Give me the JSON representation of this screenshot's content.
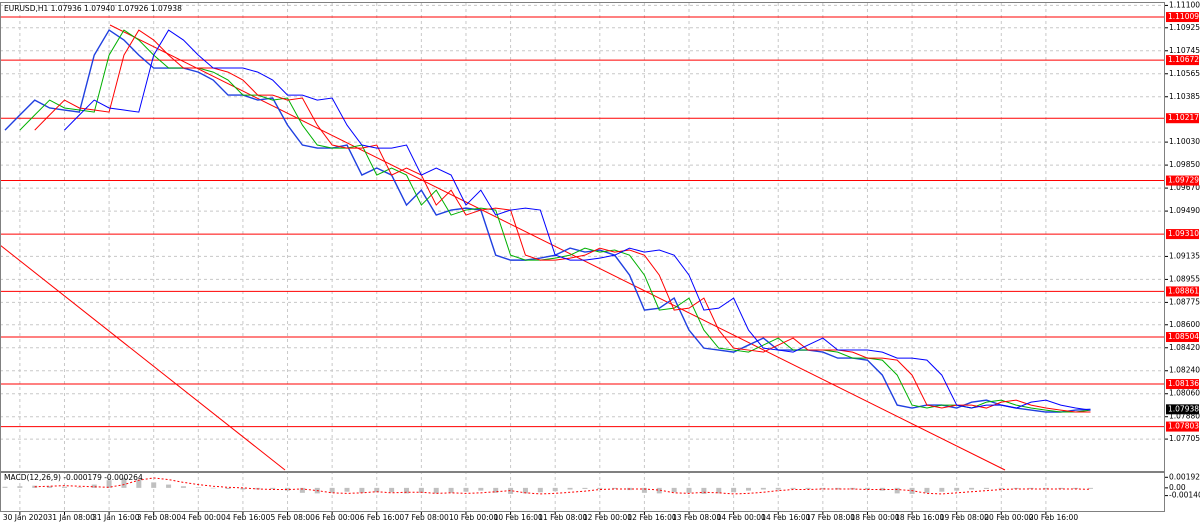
{
  "chart_data": [
    {
      "type": "line",
      "title": "EURUSD,H1 1.07936 1.07940 1.07926 1.07938",
      "x": [
        null,
        "30 Jan 2020",
        null,
        null,
        "31 Jan 08:00",
        null,
        null,
        "31 Jan 16:00",
        null,
        null,
        "3 Feb 08:00",
        null,
        null,
        "4 Feb 00:00",
        null,
        null,
        "4 Feb 16:00",
        null,
        null,
        "5 Feb 08:00",
        null,
        null,
        "6 Feb 00:00",
        null,
        null,
        "6 Feb 16:00",
        null,
        null,
        "7 Feb 08:00",
        null,
        null,
        "10 Feb 00:00",
        null,
        null,
        "10 Feb 16:00",
        null,
        null,
        "11 Feb 08:00",
        null,
        null,
        "12 Feb 00:00",
        null,
        null,
        "12 Feb 16:00",
        null,
        null,
        "13 Feb 08:00",
        null,
        null,
        "14 Feb 00:00",
        null,
        null,
        "14 Feb 16:00",
        null,
        null,
        "17 Feb 08:00",
        null,
        null,
        "18 Feb 00:00",
        null,
        null,
        "18 Feb 16:00",
        null,
        null,
        "19 Feb 08:00",
        null,
        null,
        "20 Feb 00:00",
        null,
        null,
        "20 Feb 16:00",
        null,
        null,
        null
      ],
      "series": [
        {
          "color": "#2040e0",
          "values": [
            1.10124,
            1.10242,
            1.10359,
            1.10297,
            1.10281,
            1.10265,
            1.10711,
            1.10907,
            1.10829,
            1.10711,
            1.1061,
            1.1061,
            1.1061,
            1.10578,
            1.10516,
            1.10398,
            1.10398,
            1.10359,
            1.10375,
            1.10163,
            1.10007,
            1.09983,
            1.09983,
            1.10007,
            1.09772,
            1.09827,
            1.09772,
            1.09537,
            1.09654,
            1.09459,
            1.09498,
            1.09513,
            1.09498,
            1.09145,
            1.09106,
            1.09106,
            1.09122,
            1.09145,
            1.092,
            1.09169,
            1.09185,
            1.09145,
            1.08989,
            1.08715,
            1.0873,
            1.08809,
            1.08558,
            1.08417,
            1.08402,
            1.08386,
            1.08441,
            1.08496,
            1.08402,
            1.08402,
            1.08402,
            1.08386,
            1.08339,
            1.08339,
            1.08323,
            1.08206,
            1.07971,
            1.07948,
            1.07971,
            1.07971,
            1.07948,
            1.07994,
            1.0801,
            1.07971,
            1.07948,
            1.07932,
            1.07917,
            1.07917,
            1.07932,
            1.07938
          ]
        },
        {
          "color": "#00b000",
          "values": [
            null,
            1.10124,
            1.10242,
            1.10359,
            1.10297,
            1.10281,
            1.10265,
            1.10711,
            1.10907,
            1.10829,
            1.10711,
            1.1061,
            1.1061,
            1.1061,
            1.10578,
            1.10516,
            1.10398,
            1.10398,
            1.10359,
            1.10375,
            1.10163,
            1.10007,
            1.09983,
            1.09983,
            1.10007,
            1.09772,
            1.09827,
            1.09772,
            1.09537,
            1.09654,
            1.09459,
            1.09498,
            1.09513,
            1.09498,
            1.09145,
            1.09106,
            1.09106,
            1.09122,
            1.09145,
            1.092,
            1.09169,
            1.09185,
            1.09145,
            1.08989,
            1.08715,
            1.0873,
            1.08809,
            1.08558,
            1.08417,
            1.08402,
            1.08386,
            1.08441,
            1.08496,
            1.08402,
            1.08402,
            1.08402,
            1.08386,
            1.08339,
            1.08339,
            1.08323,
            1.08206,
            1.07971,
            1.07948,
            1.07971,
            1.07971,
            1.07948,
            1.07994,
            1.0801,
            1.07971,
            1.07948,
            1.07932,
            1.07917,
            1.07917,
            1.07932
          ]
        },
        {
          "color": "#ff0000",
          "values": [
            null,
            null,
            1.10124,
            1.10242,
            1.10359,
            1.10297,
            1.10281,
            1.10265,
            1.10711,
            1.10907,
            1.10829,
            1.10711,
            1.1061,
            1.1061,
            1.1061,
            1.10578,
            1.10516,
            1.10398,
            1.10398,
            1.10359,
            1.10375,
            1.10163,
            1.10007,
            1.09983,
            1.09983,
            1.10007,
            1.09772,
            1.09827,
            1.09772,
            1.09537,
            1.09654,
            1.09459,
            1.09498,
            1.09513,
            1.09498,
            1.09145,
            1.09106,
            1.09106,
            1.09122,
            1.09145,
            1.092,
            1.09169,
            1.09185,
            1.09145,
            1.08989,
            1.08715,
            1.0873,
            1.08809,
            1.08558,
            1.08417,
            1.08402,
            1.08386,
            1.08441,
            1.08496,
            1.08402,
            1.08402,
            1.08402,
            1.08386,
            1.08339,
            1.08339,
            1.08323,
            1.08206,
            1.07971,
            1.07948,
            1.07971,
            1.07971,
            1.07948,
            1.07994,
            1.0801,
            1.07971,
            1.07948,
            1.07932,
            1.07917,
            1.07917
          ]
        },
        {
          "color": "#0000ff",
          "values": [
            null,
            null,
            null,
            null,
            1.10124,
            1.10242,
            1.10359,
            1.10297,
            1.10281,
            1.10265,
            1.10711,
            1.10907,
            1.10829,
            1.10711,
            1.1061,
            1.1061,
            1.1061,
            1.10578,
            1.10516,
            1.10398,
            1.10398,
            1.10359,
            1.10375,
            1.10163,
            1.10007,
            1.09983,
            1.09983,
            1.10007,
            1.09772,
            1.09827,
            1.09772,
            1.09537,
            1.09654,
            1.09459,
            1.09498,
            1.09513,
            1.09498,
            1.09145,
            1.09106,
            1.09106,
            1.09122,
            1.09145,
            1.092,
            1.09169,
            1.09185,
            1.09145,
            1.08989,
            1.08715,
            1.0873,
            1.08809,
            1.08558,
            1.08417,
            1.08402,
            1.08386,
            1.08441,
            1.08496,
            1.08402,
            1.08402,
            1.08402,
            1.08386,
            1.08339,
            1.08339,
            1.08323,
            1.08206,
            1.07971,
            1.07948,
            1.07971,
            1.07971,
            1.07948,
            1.07994,
            1.0801,
            1.07971,
            1.07948,
            1.07932
          ]
        }
      ],
      "ylim": [
        1.07463,
        1.11119
      ],
      "yticks": [
        {
          "value": 1.111,
          "label": "1.11100"
        },
        1.10925,
        1.10745,
        1.10565,
        1.10385,
        {
          "value": 1.1003,
          "label": "1.10030"
        },
        {
          "value": 1.0985,
          "label": "1.09850"
        },
        {
          "value": 1.0967,
          "label": "1.09670"
        },
        {
          "value": 1.0949,
          "label": "1.09490"
        },
        1.09135,
        1.08955,
        1.08775,
        {
          "value": 1.086,
          "label": "1.08600"
        },
        {
          "value": 1.0842,
          "label": "1.08420"
        },
        {
          "value": 1.0824,
          "label": "1.08240"
        },
        {
          "value": 1.0806,
          "label": "1.08060"
        },
        {
          "value": 1.0788,
          "label": "1.07880"
        },
        1.07705
      ],
      "levels": [
        1.11009,
        1.10672,
        1.10217,
        1.09729,
        {
          "value": 1.0931,
          "label": "1.09310"
        },
        1.08861,
        1.08504,
        1.08136,
        1.07803
      ],
      "last_price": 1.07938,
      "grid": true
    },
    {
      "type": "bar",
      "title": "MACD(12,26,9) -0.000179 -0.000264",
      "series": [
        {
          "type": "bar",
          "color": "#c0c0c0",
          "values": [
            0.0002,
            0.0003,
            0.0004,
            0.0003,
            0.0002,
            0.0001,
            0.0006,
            0.0014,
            0.0018,
            0.0015,
            0.001,
            0.0006,
            0.0003,
            0.0001,
            0,
            -0.0002,
            -0.0003,
            -0.0003,
            -0.0002,
            -0.0005,
            -0.0009,
            -0.001,
            -0.0009,
            -0.0007,
            -0.0009,
            -0.0008,
            -0.0008,
            -0.001,
            -0.0009,
            -0.001,
            -0.0009,
            -0.0007,
            -0.0005,
            -0.0009,
            -0.0011,
            -0.001,
            -0.0008,
            -0.0006,
            -0.0003,
            -0.0002,
            -0.0002,
            -0.0002,
            -0.0004,
            -0.0009,
            -0.001,
            -0.0008,
            -0.0009,
            -0.0011,
            -0.001,
            -0.0008,
            -0.0005,
            -0.0003,
            -0.0003,
            -0.0002,
            -0.0002,
            -0.0002,
            -0.0003,
            -0.0003,
            -0.0003,
            -0.0005,
            -0.001,
            -0.0011,
            -0.0009,
            -0.0007,
            -0.0005,
            -0.0003,
            -0.0002,
            -0.0002,
            -0.0002,
            -0.0002,
            -0.0002,
            -0.0002,
            -0.0002,
            -0.000179
          ]
        },
        {
          "type": "line",
          "color": "#ff0000",
          "values": [
            null,
            null,
            0.0002,
            0.0003,
            0.0004,
            0.0003,
            0.0002,
            0.0001,
            0.0006,
            0.0014,
            0.0018,
            0.0015,
            0.001,
            0.0006,
            0.0003,
            0.0001,
            0,
            -0.0002,
            -0.0003,
            -0.0003,
            -0.0002,
            -0.0005,
            -0.0009,
            -0.001,
            -0.0009,
            -0.0007,
            -0.0009,
            -0.0008,
            -0.0008,
            -0.001,
            -0.0009,
            -0.001,
            -0.0009,
            -0.0007,
            -0.0005,
            -0.0009,
            -0.0011,
            -0.001,
            -0.0008,
            -0.0006,
            -0.0003,
            -0.0002,
            -0.0002,
            -0.0002,
            -0.0004,
            -0.0009,
            -0.001,
            -0.0008,
            -0.0009,
            -0.0011,
            -0.001,
            -0.0008,
            -0.0005,
            -0.0003,
            -0.0003,
            -0.0002,
            -0.0002,
            -0.0002,
            -0.0003,
            -0.0003,
            -0.0003,
            -0.0005,
            -0.001,
            -0.0011,
            -0.0009,
            -0.0007,
            -0.0005,
            -0.0003,
            -0.0002,
            -0.0002,
            -0.0002,
            -0.0002,
            -0.0002,
            -0.000264
          ]
        }
      ],
      "ylim": [
        -0.0042,
        0.0027
      ],
      "yticks": [
        0.001921,
        {
          "value": 0,
          "label": "0.00"
        },
        -0.001405
      ]
    }
  ]
}
